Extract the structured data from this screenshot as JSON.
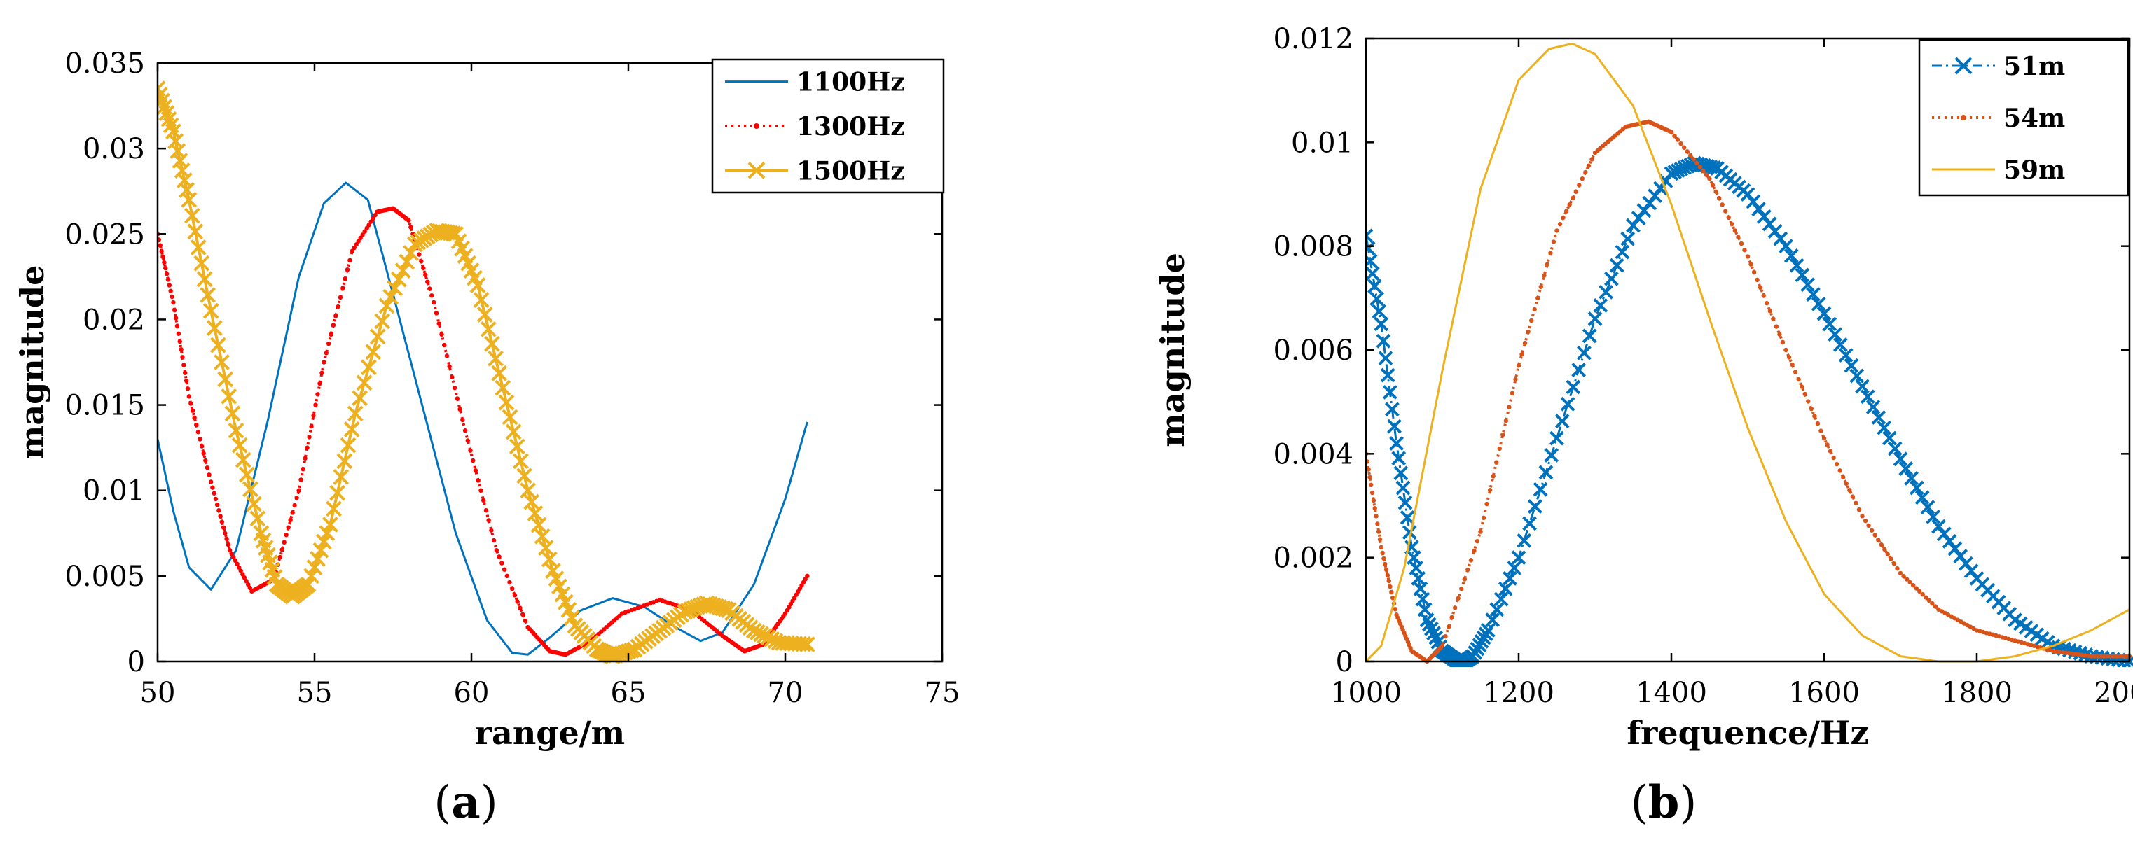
{
  "figure": {
    "panel_a_label": "a",
    "panel_b_label": "b",
    "paren_open": "(",
    "paren_close": ")"
  },
  "colors": {
    "blue": "#0072BD",
    "red": "#FF0000",
    "orange": "#D95319",
    "yellow": "#EDB120",
    "axis": "#000000"
  },
  "chart_data": [
    {
      "id": "a",
      "type": "line",
      "title": "",
      "xlabel": "range/m",
      "ylabel": "magnitude",
      "xlim": [
        50,
        75
      ],
      "ylim": [
        0,
        0.035
      ],
      "xticks": [
        50,
        55,
        60,
        65,
        70,
        75
      ],
      "xtick_labels": [
        "50",
        "55",
        "60",
        "65",
        "70",
        "75"
      ],
      "yticks": [
        0,
        0.005,
        0.01,
        0.015,
        0.02,
        0.025,
        0.03,
        0.035
      ],
      "ytick_labels": [
        "0",
        "0.005",
        "0.01",
        "0.015",
        "0.02",
        "0.025",
        "0.03",
        "0.035"
      ],
      "legend_position": "top-right",
      "series": [
        {
          "name": "1100Hz",
          "color": "#0072BD",
          "style": "solid",
          "marker": "none",
          "x": [
            50,
            50.5,
            51,
            51.7,
            52.5,
            53.5,
            54.5,
            55.3,
            56,
            56.7,
            57.5,
            58.5,
            59.5,
            60.5,
            61.3,
            61.8,
            62.5,
            63.5,
            64.5,
            65.5,
            66.5,
            67.3,
            68,
            69,
            70,
            70.7
          ],
          "y": [
            0.013,
            0.0088,
            0.0055,
            0.0042,
            0.0065,
            0.014,
            0.0225,
            0.0268,
            0.028,
            0.027,
            0.0215,
            0.0145,
            0.0075,
            0.0024,
            0.0005,
            0.0004,
            0.0014,
            0.003,
            0.0037,
            0.0032,
            0.002,
            0.0012,
            0.0017,
            0.0045,
            0.0095,
            0.014
          ]
        },
        {
          "name": "1300Hz",
          "color": "#FF0000",
          "style": "dotted",
          "marker": "point",
          "x": [
            50,
            50.5,
            51,
            51.7,
            52.3,
            53,
            53.7,
            54.5,
            55.3,
            56.2,
            57,
            57.5,
            58,
            58.8,
            59.8,
            60.8,
            61.8,
            62.5,
            63,
            63.8,
            64.8,
            66,
            67,
            68,
            68.7,
            69.3,
            70,
            70.7
          ],
          "y": [
            0.025,
            0.021,
            0.0155,
            0.0105,
            0.0065,
            0.0041,
            0.0048,
            0.01,
            0.0175,
            0.024,
            0.0263,
            0.0265,
            0.0258,
            0.021,
            0.0135,
            0.0065,
            0.002,
            0.0006,
            0.0004,
            0.0012,
            0.0028,
            0.0036,
            0.003,
            0.0015,
            0.0006,
            0.001,
            0.0028,
            0.005
          ]
        },
        {
          "name": "1500Hz",
          "color": "#EDB120",
          "style": "solid-thick",
          "marker": "x",
          "x": [
            50,
            50.5,
            51,
            51.7,
            52.5,
            53.3,
            53.8,
            54.3,
            54.8,
            55.5,
            56.3,
            57.3,
            58.2,
            58.9,
            59.5,
            60.2,
            61,
            61.8,
            62.6,
            63.3,
            64,
            64.5,
            65.2,
            66,
            66.8,
            67.5,
            68.2,
            69,
            69.8,
            70.7
          ],
          "y": [
            0.0335,
            0.031,
            0.027,
            0.0205,
            0.0135,
            0.0075,
            0.0045,
            0.0038,
            0.0045,
            0.008,
            0.0145,
            0.0208,
            0.0244,
            0.0252,
            0.025,
            0.022,
            0.016,
            0.01,
            0.0053,
            0.0021,
            0.0007,
            0.0003,
            0.0007,
            0.0018,
            0.0029,
            0.0034,
            0.003,
            0.0018,
            0.0011,
            0.001
          ]
        }
      ]
    },
    {
      "id": "b",
      "type": "line",
      "title": "",
      "xlabel": "frequence/Hz",
      "ylabel": "magnitude",
      "xlim": [
        1000,
        2000
      ],
      "ylim": [
        0,
        0.012
      ],
      "xticks": [
        1000,
        1200,
        1400,
        1600,
        1800,
        2000
      ],
      "xtick_labels": [
        "1000",
        "1200",
        "1400",
        "1600",
        "1800",
        "2000"
      ],
      "yticks": [
        0,
        0.002,
        0.004,
        0.006,
        0.008,
        0.01,
        0.012
      ],
      "ytick_labels": [
        "0",
        "0.002",
        "0.004",
        "0.006",
        "0.008",
        "0.01",
        "0.012"
      ],
      "legend_position": "top-right",
      "series": [
        {
          "name": "51m",
          "color": "#0072BD",
          "style": "dash-dot",
          "marker": "x",
          "x": [
            1000,
            1020,
            1040,
            1060,
            1080,
            1100,
            1120,
            1130,
            1140,
            1160,
            1200,
            1250,
            1300,
            1350,
            1400,
            1430,
            1460,
            1500,
            1550,
            1600,
            1650,
            1700,
            1750,
            1800,
            1850,
            1900,
            1950,
            2000
          ],
          "y": [
            0.0082,
            0.0065,
            0.0042,
            0.0022,
            0.0008,
            0.0002,
            0.0,
            0.0,
            0.0001,
            0.0006,
            0.002,
            0.0043,
            0.0066,
            0.0084,
            0.0094,
            0.0096,
            0.0095,
            0.009,
            0.008,
            0.0067,
            0.0053,
            0.0039,
            0.0026,
            0.0016,
            0.0008,
            0.0003,
            0.0001,
            0.0
          ]
        },
        {
          "name": "54m",
          "color": "#D95319",
          "style": "dotted",
          "marker": "point",
          "x": [
            1000,
            1020,
            1040,
            1060,
            1080,
            1100,
            1150,
            1200,
            1250,
            1300,
            1340,
            1370,
            1400,
            1450,
            1500,
            1550,
            1600,
            1650,
            1700,
            1750,
            1800,
            1850,
            1900,
            1950,
            2000
          ],
          "y": [
            0.004,
            0.0022,
            0.0009,
            0.0002,
            0.0,
            0.0003,
            0.0025,
            0.0057,
            0.0083,
            0.0098,
            0.0103,
            0.0104,
            0.0102,
            0.0093,
            0.0078,
            0.006,
            0.0043,
            0.0028,
            0.0017,
            0.001,
            0.0006,
            0.0004,
            0.0002,
            0.0001,
            0.0001
          ]
        },
        {
          "name": "59m",
          "color": "#EDB120",
          "style": "solid",
          "marker": "none",
          "x": [
            1000,
            1020,
            1050,
            1100,
            1150,
            1200,
            1240,
            1270,
            1300,
            1350,
            1400,
            1450,
            1500,
            1550,
            1600,
            1650,
            1700,
            1750,
            1800,
            1850,
            1900,
            1950,
            2000
          ],
          "y": [
            0.0,
            0.0003,
            0.0018,
            0.0056,
            0.0091,
            0.0112,
            0.0118,
            0.0119,
            0.0117,
            0.0107,
            0.0088,
            0.0066,
            0.0045,
            0.0027,
            0.0013,
            0.0005,
            0.0001,
            0.0,
            0.0,
            0.0001,
            0.0003,
            0.0006,
            0.001
          ]
        }
      ]
    }
  ]
}
